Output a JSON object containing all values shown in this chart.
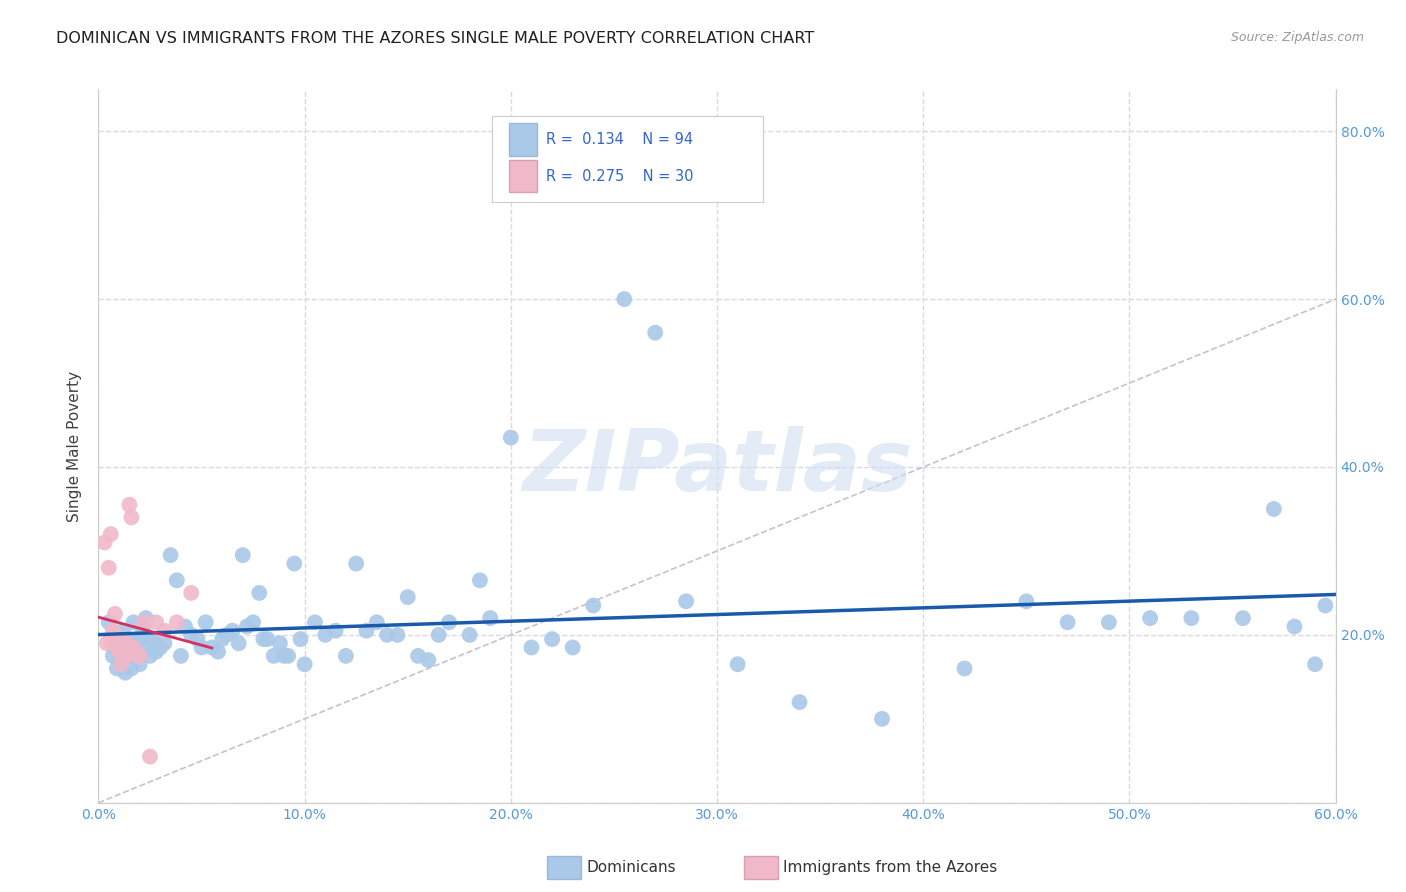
{
  "title": "DOMINICAN VS IMMIGRANTS FROM THE AZORES SINGLE MALE POVERTY CORRELATION CHART",
  "source": "Source: ZipAtlas.com",
  "ylabel": "Single Male Poverty",
  "watermark": "ZIPatlas",
  "xlim": [
    0.0,
    0.6
  ],
  "ylim": [
    0.0,
    0.85
  ],
  "xticks": [
    0.0,
    0.1,
    0.2,
    0.3,
    0.4,
    0.5,
    0.6
  ],
  "yticks": [
    0.0,
    0.2,
    0.4,
    0.6,
    0.8
  ],
  "xticklabels": [
    "0.0%",
    "10.0%",
    "20.0%",
    "30.0%",
    "40.0%",
    "50.0%",
    "60.0%"
  ],
  "yticklabels_right": [
    "",
    "20.0%",
    "40.0%",
    "60.0%",
    "80.0%"
  ],
  "legend_labels": [
    "Dominicans",
    "Immigrants from the Azores"
  ],
  "blue_R": 0.134,
  "blue_N": 94,
  "pink_R": 0.275,
  "pink_N": 30,
  "blue_color": "#aac8e8",
  "pink_color": "#f0b8c8",
  "blue_line_color": "#1a5aaa",
  "pink_line_color": "#d43060",
  "diagonal_color": "#c8c0d0",
  "grid_color": "#d8d8e8",
  "title_color": "#202020",
  "source_color": "#999999",
  "axis_label_color": "#404040",
  "tick_color": "#5599dd",
  "legend_R_color": "#3366cc",
  "blue_x": [
    0.005,
    0.007,
    0.008,
    0.009,
    0.01,
    0.01,
    0.011,
    0.012,
    0.013,
    0.014,
    0.015,
    0.015,
    0.016,
    0.017,
    0.018,
    0.019,
    0.02,
    0.02,
    0.021,
    0.022,
    0.023,
    0.024,
    0.025,
    0.026,
    0.027,
    0.028,
    0.03,
    0.032,
    0.035,
    0.038,
    0.04,
    0.042,
    0.045,
    0.048,
    0.05,
    0.052,
    0.055,
    0.058,
    0.06,
    0.062,
    0.065,
    0.068,
    0.07,
    0.072,
    0.075,
    0.078,
    0.08,
    0.082,
    0.085,
    0.088,
    0.09,
    0.092,
    0.095,
    0.098,
    0.1,
    0.105,
    0.11,
    0.115,
    0.12,
    0.125,
    0.13,
    0.135,
    0.14,
    0.145,
    0.15,
    0.155,
    0.16,
    0.165,
    0.17,
    0.18,
    0.185,
    0.19,
    0.2,
    0.21,
    0.22,
    0.23,
    0.24,
    0.255,
    0.27,
    0.285,
    0.31,
    0.34,
    0.38,
    0.42,
    0.45,
    0.47,
    0.49,
    0.51,
    0.53,
    0.555,
    0.57,
    0.58,
    0.59,
    0.595
  ],
  "blue_y": [
    0.215,
    0.175,
    0.185,
    0.16,
    0.195,
    0.17,
    0.2,
    0.205,
    0.155,
    0.185,
    0.19,
    0.175,
    0.16,
    0.215,
    0.185,
    0.195,
    0.175,
    0.165,
    0.2,
    0.21,
    0.22,
    0.185,
    0.175,
    0.19,
    0.195,
    0.18,
    0.185,
    0.19,
    0.295,
    0.265,
    0.175,
    0.21,
    0.2,
    0.195,
    0.185,
    0.215,
    0.185,
    0.18,
    0.195,
    0.2,
    0.205,
    0.19,
    0.295,
    0.21,
    0.215,
    0.25,
    0.195,
    0.195,
    0.175,
    0.19,
    0.175,
    0.175,
    0.285,
    0.195,
    0.165,
    0.215,
    0.2,
    0.205,
    0.175,
    0.285,
    0.205,
    0.215,
    0.2,
    0.2,
    0.245,
    0.175,
    0.17,
    0.2,
    0.215,
    0.2,
    0.265,
    0.22,
    0.435,
    0.185,
    0.195,
    0.185,
    0.235,
    0.6,
    0.56,
    0.24,
    0.165,
    0.12,
    0.1,
    0.16,
    0.24,
    0.215,
    0.215,
    0.22,
    0.22,
    0.22,
    0.35,
    0.21,
    0.165,
    0.235
  ],
  "pink_x": [
    0.003,
    0.004,
    0.005,
    0.006,
    0.006,
    0.007,
    0.007,
    0.008,
    0.008,
    0.009,
    0.009,
    0.01,
    0.01,
    0.011,
    0.011,
    0.012,
    0.013,
    0.014,
    0.015,
    0.016,
    0.017,
    0.018,
    0.019,
    0.02,
    0.022,
    0.025,
    0.028,
    0.032,
    0.038,
    0.045
  ],
  "pink_y": [
    0.31,
    0.19,
    0.28,
    0.195,
    0.32,
    0.19,
    0.205,
    0.2,
    0.225,
    0.195,
    0.19,
    0.185,
    0.18,
    0.165,
    0.185,
    0.195,
    0.175,
    0.185,
    0.355,
    0.34,
    0.185,
    0.18,
    0.175,
    0.175,
    0.215,
    0.055,
    0.215,
    0.205,
    0.215,
    0.25
  ]
}
